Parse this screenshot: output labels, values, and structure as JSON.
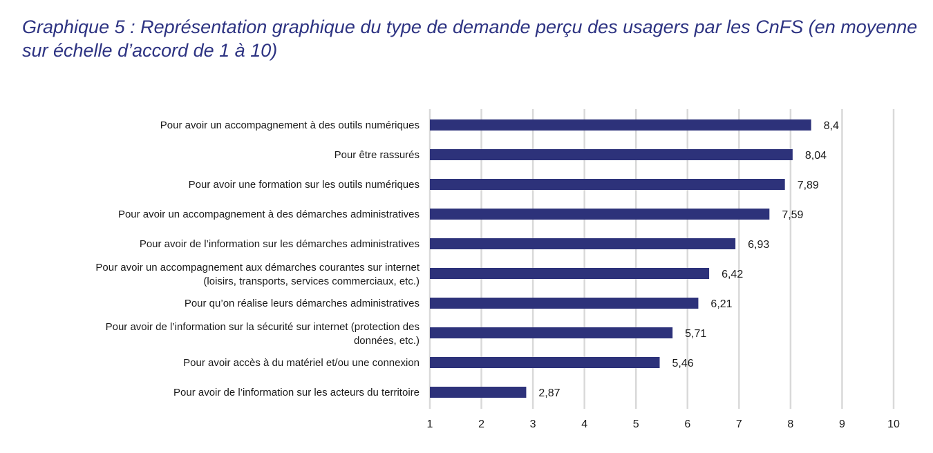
{
  "chart_data": {
    "type": "bar",
    "orientation": "horizontal",
    "title": "Graphique 5 : Représentation graphique du type de demande perçu des usagers par les CnFS (en moyenne sur échelle d’accord de 1 à 10)",
    "categories": [
      [
        "Pour avoir un accompagnement à des outils numériques"
      ],
      [
        "Pour être rassurés"
      ],
      [
        "Pour avoir une formation sur les outils numériques"
      ],
      [
        "Pour avoir un accompagnement à des démarches administratives"
      ],
      [
        "Pour avoir de l’information sur les démarches administratives"
      ],
      [
        "Pour avoir un accompagnement aux démarches courantes sur internet",
        "(loisirs, transports, services commerciaux, etc.)"
      ],
      [
        "Pour qu’on réalise leurs démarches administratives"
      ],
      [
        "Pour avoir de l’information sur la sécurité sur internet (protection des",
        "données, etc.)"
      ],
      [
        "Pour avoir accès à du matériel et/ou une connexion"
      ],
      [
        "Pour avoir de l’information sur les acteurs du territoire"
      ]
    ],
    "values": [
      8.4,
      8.04,
      7.89,
      7.59,
      6.93,
      6.42,
      6.21,
      5.71,
      5.46,
      2.87
    ],
    "value_labels": [
      "8,4",
      "8,04",
      "7,89",
      "7,59",
      "6,93",
      "6,42",
      "6,21",
      "5,71",
      "5,46",
      "2,87"
    ],
    "xlim": [
      1,
      10
    ],
    "xticks": [
      "1",
      "2",
      "3",
      "4",
      "5",
      "6",
      "7",
      "8",
      "9",
      "10"
    ],
    "xlabel": "",
    "ylabel": "",
    "grid": true,
    "legend": "none",
    "colors": {
      "bar": "#2d327a",
      "grid": "#d9d9d9",
      "title": "#2d3382"
    }
  }
}
